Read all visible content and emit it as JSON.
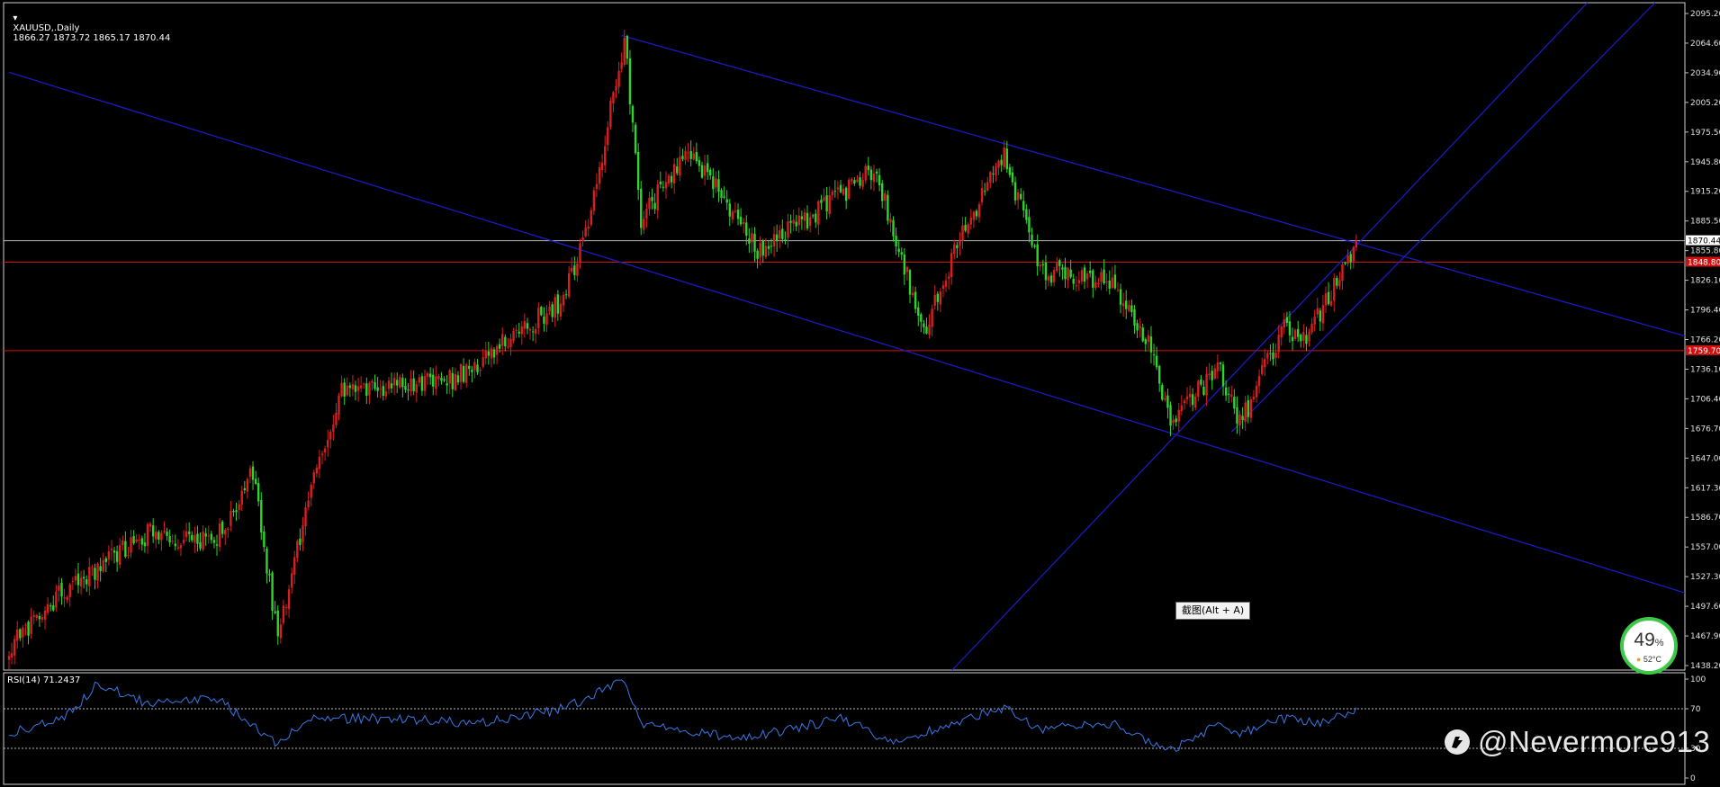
{
  "header": {
    "symbol_label": "XAUUSD,.Daily",
    "ohlc": "1866.27 1873.72 1865.17 1870.44"
  },
  "rsi_header": "RSI(14) 71.2437",
  "tooltip": "截图(Alt + A)",
  "cpu_widget": {
    "percent": "49",
    "unit": "%",
    "temp": "52°C"
  },
  "watermark": "@Nevermore913",
  "colors": {
    "bull": "#d61f1f",
    "bear": "#2fd42f",
    "channel": "#1c1cd2",
    "hline": "#d01010",
    "current": "#b8b8b8",
    "rsi": "#3a78e8"
  },
  "chart_data": [
    {
      "type": "candlestick",
      "symbol": "XAUUSD",
      "timeframe": "Daily",
      "ylim": [
        1438.2,
        2110
      ],
      "y_ticks": [
        "2095.20",
        "2064.60",
        "2034.90",
        "2005.20",
        "1975.50",
        "1945.80",
        "1915.20",
        "1885.50",
        "1855.80",
        "1826.10",
        "1796.40",
        "1766.20",
        "1736.10",
        "1706.40",
        "1676.70",
        "1647.00",
        "1617.30",
        "1586.70",
        "1557.00",
        "1527.30",
        "1497.60",
        "1467.90",
        "1438.20"
      ],
      "current_price": {
        "value": 1870.44,
        "label": "1870.44"
      },
      "horizontal_lines": [
        {
          "value": 1848.8,
          "label": "1848.80"
        },
        {
          "value": 1759.7,
          "label": "1759.70"
        }
      ],
      "key_points": [
        {
          "bar": 0,
          "price": 1460
        },
        {
          "bar": 18,
          "price": 1515
        },
        {
          "bar": 50,
          "price": 1575
        },
        {
          "bar": 75,
          "price": 1570
        },
        {
          "bar": 88,
          "price": 1640
        },
        {
          "bar": 97,
          "price": 1470
        },
        {
          "bar": 108,
          "price": 1610
        },
        {
          "bar": 120,
          "price": 1720
        },
        {
          "bar": 160,
          "price": 1730
        },
        {
          "bar": 200,
          "price": 1810
        },
        {
          "bar": 210,
          "price": 1900
        },
        {
          "bar": 222,
          "price": 2075
        },
        {
          "bar": 228,
          "price": 1890
        },
        {
          "bar": 245,
          "price": 1965
        },
        {
          "bar": 270,
          "price": 1860
        },
        {
          "bar": 300,
          "price": 1915
        },
        {
          "bar": 312,
          "price": 1945
        },
        {
          "bar": 330,
          "price": 1780
        },
        {
          "bar": 345,
          "price": 1885
        },
        {
          "bar": 359,
          "price": 1955
        },
        {
          "bar": 372,
          "price": 1840
        },
        {
          "bar": 398,
          "price": 1830
        },
        {
          "bar": 410,
          "price": 1775
        },
        {
          "bar": 420,
          "price": 1685
        },
        {
          "bar": 436,
          "price": 1745
        },
        {
          "bar": 444,
          "price": 1685
        },
        {
          "bar": 460,
          "price": 1785
        },
        {
          "bar": 468,
          "price": 1770
        },
        {
          "bar": 480,
          "price": 1835
        },
        {
          "bar": 486,
          "price": 1870
        }
      ],
      "trendlines": [
        {
          "name": "upper-channel",
          "p1": {
            "bar": 221,
            "price": 2077
          },
          "p2": {
            "bar": 486,
            "price": 1868
          },
          "extend": "right"
        },
        {
          "name": "lower-channel",
          "p1": {
            "bar": 0,
            "price": 2040
          },
          "p2": {
            "bar": 421,
            "price": 1675
          },
          "extend": "right"
        },
        {
          "name": "rising-line-1",
          "p1": {
            "bar": 421,
            "price": 1675
          },
          "p2": {
            "bar": 480,
            "price": 1848
          },
          "extend": "both"
        },
        {
          "name": "rising-line-2",
          "p1": {
            "bar": 441,
            "price": 1678
          },
          "p2": {
            "bar": 470,
            "price": 1760
          },
          "extend": "right"
        }
      ]
    },
    {
      "type": "line",
      "indicator": "RSI(14)",
      "last_value": 71.2437,
      "ylim": [
        0,
        100
      ],
      "y_ticks": [
        "100",
        "70",
        "30",
        "0"
      ],
      "levels": [
        70,
        30
      ],
      "key_points": [
        {
          "bar": 0,
          "value": 45
        },
        {
          "bar": 20,
          "value": 60
        },
        {
          "bar": 32,
          "value": 95
        },
        {
          "bar": 50,
          "value": 75
        },
        {
          "bar": 75,
          "value": 80
        },
        {
          "bar": 97,
          "value": 35
        },
        {
          "bar": 108,
          "value": 60
        },
        {
          "bar": 140,
          "value": 60
        },
        {
          "bar": 170,
          "value": 55
        },
        {
          "bar": 200,
          "value": 70
        },
        {
          "bar": 215,
          "value": 90
        },
        {
          "bar": 222,
          "value": 100
        },
        {
          "bar": 228,
          "value": 55
        },
        {
          "bar": 265,
          "value": 40
        },
        {
          "bar": 300,
          "value": 60
        },
        {
          "bar": 320,
          "value": 35
        },
        {
          "bar": 345,
          "value": 60
        },
        {
          "bar": 359,
          "value": 70
        },
        {
          "bar": 372,
          "value": 50
        },
        {
          "bar": 398,
          "value": 55
        },
        {
          "bar": 410,
          "value": 38
        },
        {
          "bar": 420,
          "value": 28
        },
        {
          "bar": 436,
          "value": 55
        },
        {
          "bar": 444,
          "value": 45
        },
        {
          "bar": 460,
          "value": 60
        },
        {
          "bar": 475,
          "value": 55
        },
        {
          "bar": 486,
          "value": 71.2
        }
      ]
    }
  ]
}
